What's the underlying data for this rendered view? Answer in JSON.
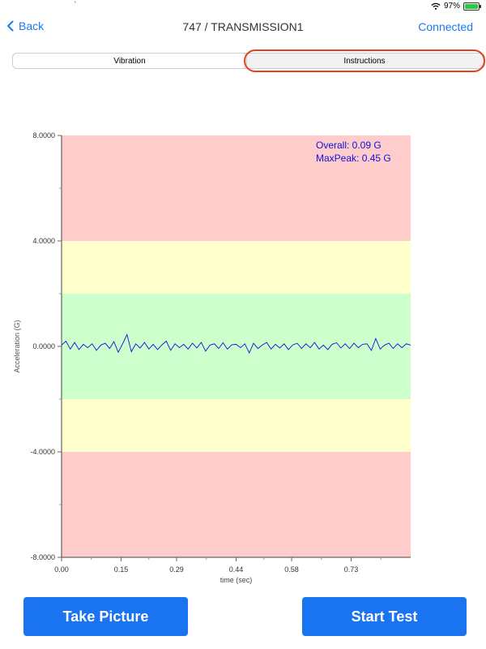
{
  "status_bar": {
    "battery_text": "97%",
    "battery_level": 0.97,
    "tick": "'"
  },
  "nav": {
    "back_label": "Back",
    "title": "747 / TRANSMISSION1",
    "connected_label": "Connected"
  },
  "tabs": [
    {
      "label": "Vibration"
    },
    {
      "label": "Instructions"
    }
  ],
  "chart_data": {
    "type": "line",
    "xlabel": "time (sec)",
    "ylabel": "Acceleration (G)",
    "xlim": [
      0,
      0.88
    ],
    "ylim": [
      -8,
      8
    ],
    "xticks": [
      0.0,
      0.15,
      0.29,
      0.44,
      0.58,
      0.73
    ],
    "xtick_labels": [
      "0.00",
      "0.15",
      "0.29",
      "0.44",
      "0.58",
      "0.73"
    ],
    "yticks": [
      8,
      4,
      0,
      -4,
      -8
    ],
    "ytick_labels": [
      "8.0000",
      "4.0000",
      "0.0000",
      "-4.0000",
      "-8.0000"
    ],
    "bands": [
      {
        "from": 4,
        "to": 8,
        "color": "#ffcccc"
      },
      {
        "from": 2,
        "to": 4,
        "color": "#ffffcc"
      },
      {
        "from": -2,
        "to": 2,
        "color": "#ccffcc"
      },
      {
        "from": -4,
        "to": -2,
        "color": "#ffffcc"
      },
      {
        "from": -8,
        "to": -4,
        "color": "#ffcccc"
      }
    ],
    "annotations": [
      "Overall: 0.09 G",
      "MaxPeak: 0.45 G"
    ],
    "series": [
      {
        "color": "#1010dd",
        "x": [
          0.0,
          0.011,
          0.022,
          0.033,
          0.044,
          0.055,
          0.066,
          0.077,
          0.088,
          0.099,
          0.11,
          0.121,
          0.132,
          0.143,
          0.154,
          0.165,
          0.176,
          0.187,
          0.198,
          0.209,
          0.22,
          0.231,
          0.242,
          0.253,
          0.264,
          0.275,
          0.286,
          0.297,
          0.308,
          0.319,
          0.33,
          0.341,
          0.352,
          0.363,
          0.374,
          0.385,
          0.396,
          0.407,
          0.418,
          0.429,
          0.44,
          0.451,
          0.462,
          0.473,
          0.484,
          0.495,
          0.506,
          0.517,
          0.528,
          0.539,
          0.55,
          0.561,
          0.572,
          0.583,
          0.594,
          0.605,
          0.616,
          0.627,
          0.638,
          0.649,
          0.66,
          0.671,
          0.682,
          0.693,
          0.704,
          0.715,
          0.726,
          0.737,
          0.748,
          0.759,
          0.77,
          0.781,
          0.792,
          0.803,
          0.814,
          0.825,
          0.836,
          0.847,
          0.858,
          0.869,
          0.88
        ],
        "y": [
          0.05,
          0.2,
          -0.1,
          0.15,
          -0.12,
          0.08,
          -0.05,
          0.1,
          -0.15,
          0.05,
          0.12,
          -0.08,
          0.18,
          -0.22,
          0.1,
          0.45,
          -0.2,
          0.1,
          -0.06,
          0.15,
          -0.1,
          0.08,
          -0.12,
          0.06,
          0.2,
          -0.15,
          0.1,
          -0.05,
          0.08,
          -0.1,
          0.12,
          -0.06,
          0.15,
          -0.18,
          0.05,
          0.1,
          -0.08,
          0.14,
          -0.1,
          0.06,
          0.08,
          -0.05,
          0.1,
          -0.25,
          0.12,
          -0.08,
          0.05,
          0.15,
          -0.1,
          0.08,
          -0.06,
          0.1,
          -0.12,
          0.06,
          0.12,
          -0.08,
          0.1,
          -0.05,
          0.15,
          -0.1,
          0.05,
          -0.12,
          0.08,
          0.14,
          -0.06,
          0.1,
          -0.08,
          0.12,
          -0.05,
          0.08,
          0.1,
          -0.15,
          0.3,
          -0.1,
          0.05,
          0.12,
          -0.08,
          0.1,
          -0.05,
          0.1,
          0.05
        ]
      }
    ]
  },
  "buttons": {
    "take_picture": "Take Picture",
    "start_test": "Start Test"
  }
}
